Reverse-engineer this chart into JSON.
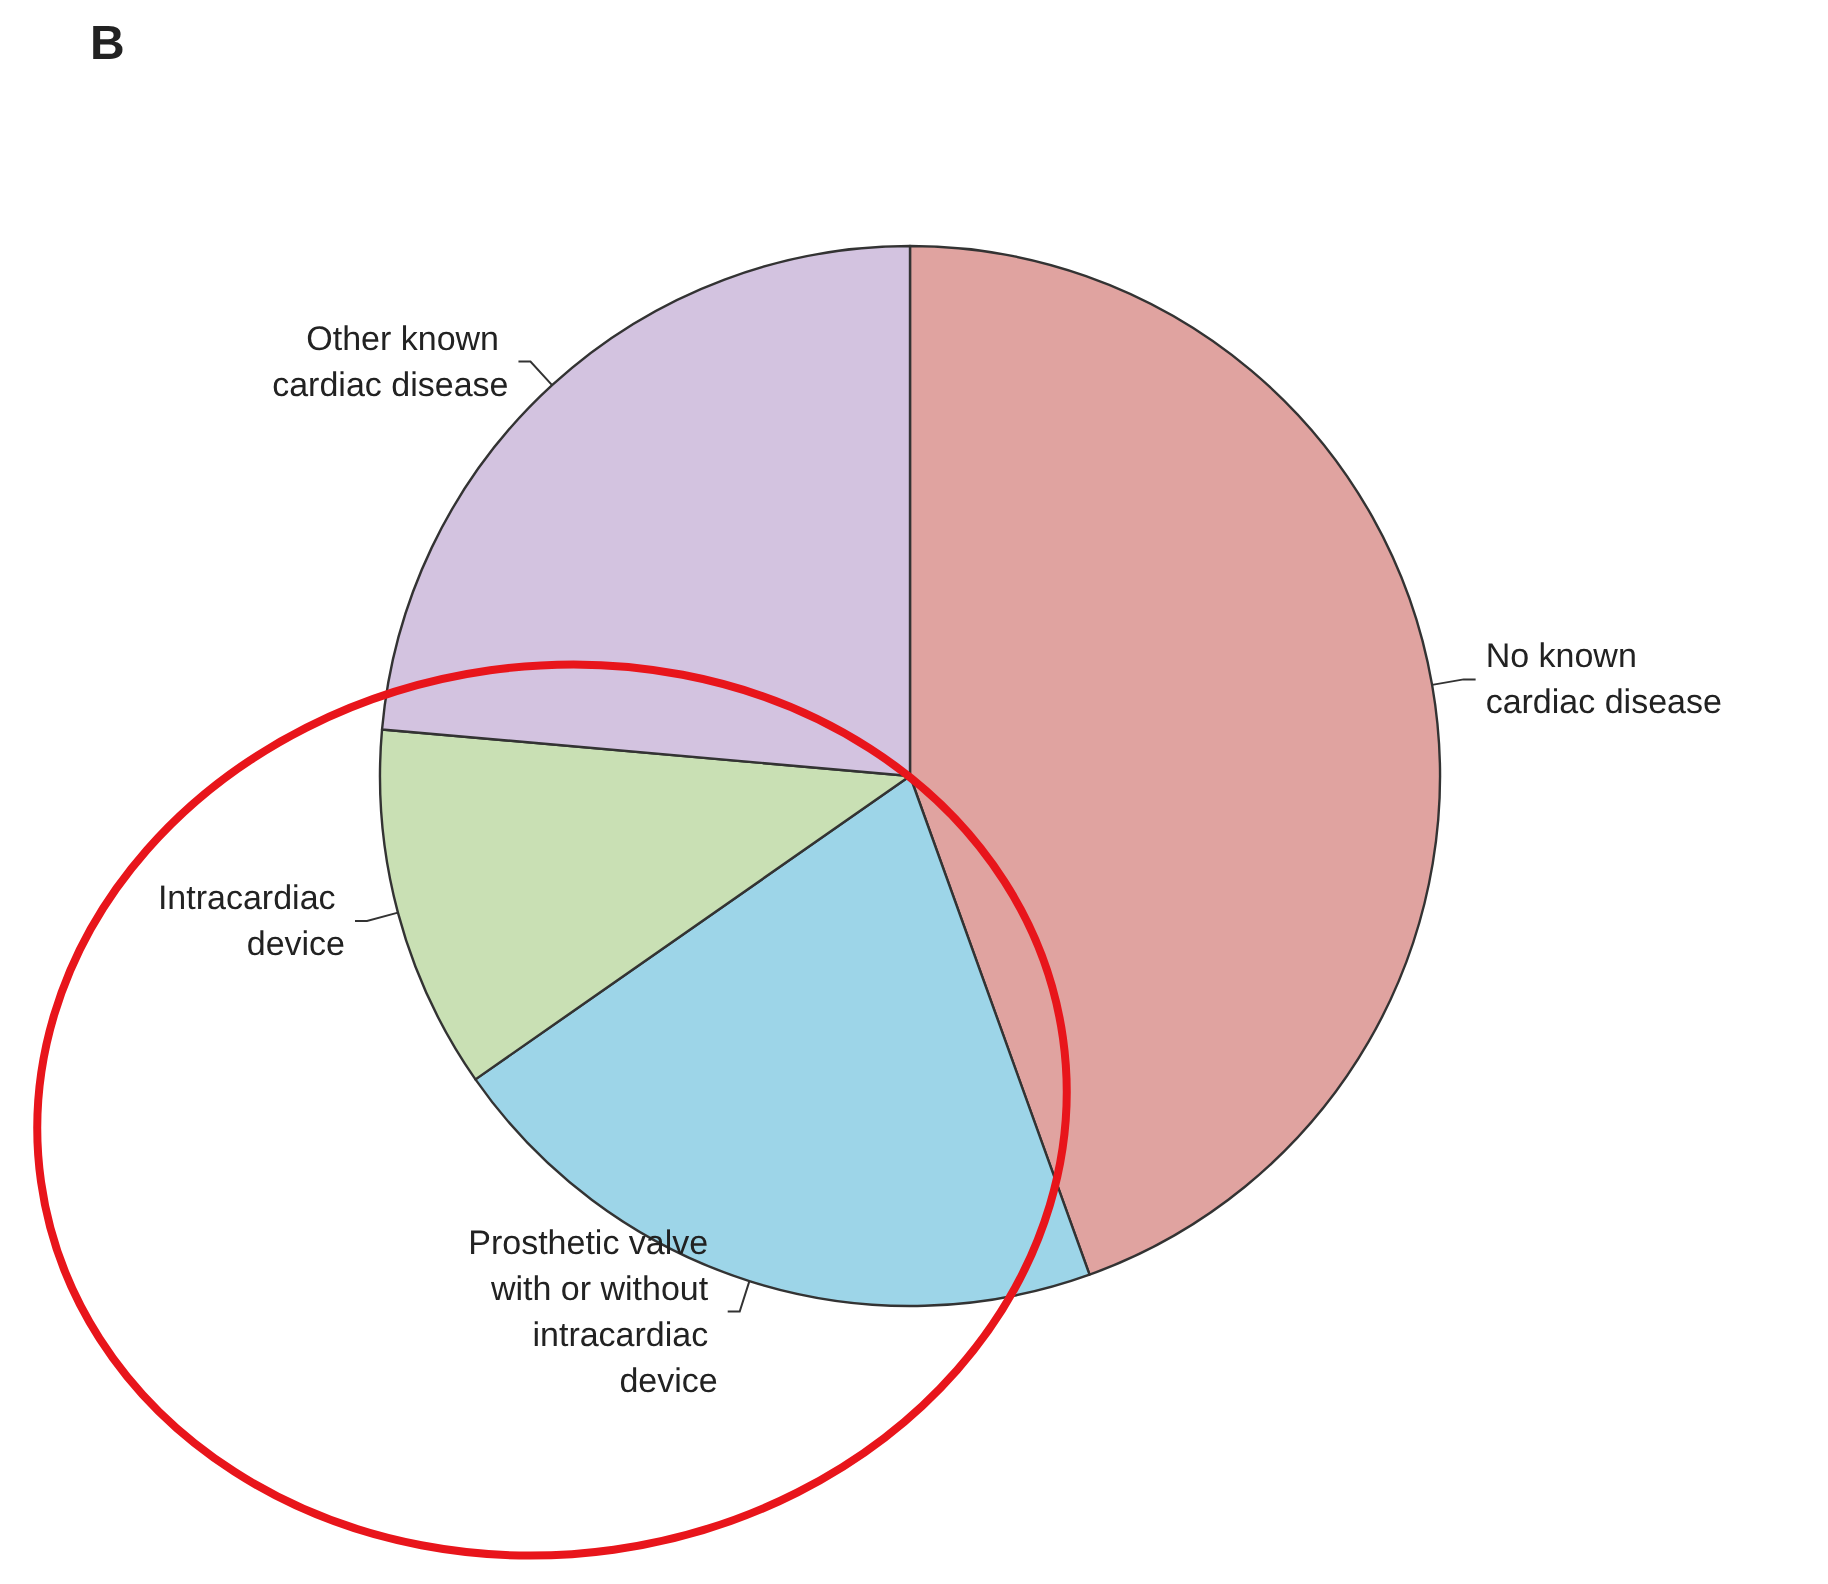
{
  "chart_data": {
    "type": "pie",
    "title": "B",
    "categories": [
      "No known cardiac disease",
      "Prosthetic valve with or without intracardiac device",
      "Intracardiac device",
      "Other known cardiac disease"
    ],
    "values": [
      44.5,
      20.8,
      11.1,
      23.6
    ],
    "colors": [
      "#e0a3a0",
      "#9dd5e8",
      "#c9e0b4",
      "#d3c3e0"
    ],
    "legend": false
  }
}
